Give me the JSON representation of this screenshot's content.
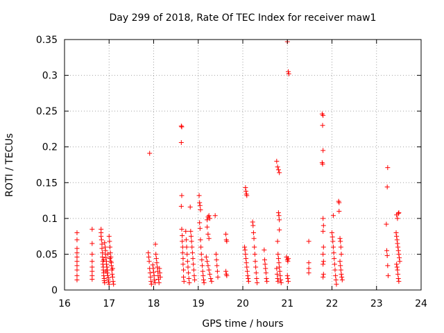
{
  "chart_data": {
    "type": "scatter",
    "title": "Day 299 of 2018, Rate Of TEC Index for receiver maw1",
    "xlabel": "GPS time / hours",
    "ylabel": "ROTI / TECUs",
    "xlim": [
      16,
      24
    ],
    "ylim": [
      0,
      0.35
    ],
    "grid": true,
    "marker": "plus",
    "color": "#ff0000",
    "x_ticks": [
      16,
      17,
      18,
      19,
      20,
      21,
      22,
      23,
      24
    ],
    "x_tick_labels": [
      "16",
      "17",
      "18",
      "19",
      "20",
      "21",
      "22",
      "23",
      "24"
    ],
    "y_ticks": [
      0,
      0.05,
      0.1,
      0.15,
      0.2,
      0.25,
      0.3,
      0.35
    ],
    "y_tick_labels": [
      "0",
      "0.05",
      "0.1",
      "0.15",
      "0.2",
      "0.25",
      "0.3",
      "0.35"
    ],
    "series": [
      {
        "name": "ROTI",
        "points": [
          [
            16.28,
            0.08
          ],
          [
            16.28,
            0.07
          ],
          [
            16.28,
            0.058
          ],
          [
            16.28,
            0.052
          ],
          [
            16.28,
            0.046
          ],
          [
            16.28,
            0.04
          ],
          [
            16.28,
            0.034
          ],
          [
            16.28,
            0.028
          ],
          [
            16.28,
            0.02
          ],
          [
            16.28,
            0.014
          ],
          [
            16.62,
            0.085
          ],
          [
            16.62,
            0.065
          ],
          [
            16.62,
            0.05
          ],
          [
            16.62,
            0.04
          ],
          [
            16.62,
            0.032
          ],
          [
            16.62,
            0.026
          ],
          [
            16.62,
            0.02
          ],
          [
            16.62,
            0.015
          ],
          [
            16.82,
            0.085
          ],
          [
            16.82,
            0.08
          ],
          [
            16.82,
            0.075
          ],
          [
            16.83,
            0.07
          ],
          [
            16.84,
            0.064
          ],
          [
            16.84,
            0.058
          ],
          [
            16.85,
            0.052
          ],
          [
            16.85,
            0.046
          ],
          [
            16.86,
            0.04
          ],
          [
            16.86,
            0.036
          ],
          [
            16.87,
            0.032
          ],
          [
            16.87,
            0.028
          ],
          [
            16.88,
            0.024
          ],
          [
            16.88,
            0.02
          ],
          [
            16.89,
            0.016
          ],
          [
            16.89,
            0.013
          ],
          [
            16.9,
            0.01
          ],
          [
            16.9,
            0.066
          ],
          [
            16.91,
            0.06
          ],
          [
            16.92,
            0.055
          ],
          [
            16.92,
            0.05
          ],
          [
            16.93,
            0.045
          ],
          [
            16.94,
            0.04
          ],
          [
            16.94,
            0.036
          ],
          [
            16.95,
            0.032
          ],
          [
            16.96,
            0.028
          ],
          [
            16.96,
            0.024
          ],
          [
            16.97,
            0.02
          ],
          [
            16.98,
            0.017
          ],
          [
            16.98,
            0.014
          ],
          [
            16.99,
            0.011
          ],
          [
            17.0,
            0.008
          ],
          [
            17.0,
            0.075
          ],
          [
            17.01,
            0.068
          ],
          [
            17.02,
            0.06
          ],
          [
            17.03,
            0.052
          ],
          [
            17.04,
            0.046
          ],
          [
            17.04,
            0.04
          ],
          [
            17.05,
            0.034
          ],
          [
            17.06,
            0.028
          ],
          [
            17.07,
            0.022
          ],
          [
            17.08,
            0.018
          ],
          [
            17.09,
            0.012
          ],
          [
            17.1,
            0.008
          ],
          [
            17.02,
            0.044
          ],
          [
            17.05,
            0.038
          ],
          [
            17.08,
            0.03
          ],
          [
            16.93,
            0.026
          ],
          [
            16.88,
            0.042
          ],
          [
            16.97,
            0.05
          ],
          [
            17.88,
            0.052
          ],
          [
            17.89,
            0.046
          ],
          [
            17.9,
            0.04
          ],
          [
            17.91,
            0.03
          ],
          [
            17.92,
            0.024
          ],
          [
            17.93,
            0.018
          ],
          [
            17.94,
            0.012
          ],
          [
            17.95,
            0.008
          ],
          [
            17.98,
            0.035
          ],
          [
            17.99,
            0.03
          ],
          [
            18.0,
            0.025
          ],
          [
            18.01,
            0.02
          ],
          [
            18.02,
            0.014
          ],
          [
            18.03,
            0.01
          ],
          [
            18.04,
            0.064
          ],
          [
            18.05,
            0.05
          ],
          [
            18.06,
            0.044
          ],
          [
            18.07,
            0.038
          ],
          [
            18.08,
            0.032
          ],
          [
            18.09,
            0.026
          ],
          [
            18.1,
            0.02
          ],
          [
            18.11,
            0.015
          ],
          [
            18.12,
            0.01
          ],
          [
            18.13,
            0.03
          ],
          [
            18.14,
            0.024
          ],
          [
            18.15,
            0.018
          ],
          [
            17.91,
            0.191
          ],
          [
            18.62,
            0.229
          ],
          [
            18.63,
            0.228
          ],
          [
            18.62,
            0.206
          ],
          [
            18.63,
            0.132
          ],
          [
            18.62,
            0.117
          ],
          [
            18.63,
            0.085
          ],
          [
            18.64,
            0.076
          ],
          [
            18.64,
            0.068
          ],
          [
            18.65,
            0.06
          ],
          [
            18.65,
            0.052
          ],
          [
            18.66,
            0.044
          ],
          [
            18.66,
            0.036
          ],
          [
            18.67,
            0.028
          ],
          [
            18.67,
            0.018
          ],
          [
            18.68,
            0.012
          ],
          [
            18.72,
            0.082
          ],
          [
            18.73,
            0.07
          ],
          [
            18.74,
            0.06
          ],
          [
            18.75,
            0.05
          ],
          [
            18.76,
            0.04
          ],
          [
            18.77,
            0.032
          ],
          [
            18.78,
            0.024
          ],
          [
            18.79,
            0.016
          ],
          [
            18.8,
            0.01
          ],
          [
            18.82,
            0.116
          ],
          [
            18.83,
            0.082
          ],
          [
            18.84,
            0.075
          ],
          [
            18.85,
            0.068
          ],
          [
            18.86,
            0.06
          ],
          [
            18.87,
            0.052
          ],
          [
            18.88,
            0.044
          ],
          [
            18.89,
            0.036
          ],
          [
            18.9,
            0.028
          ],
          [
            18.91,
            0.02
          ],
          [
            18.92,
            0.014
          ],
          [
            19.02,
            0.132
          ],
          [
            19.03,
            0.122
          ],
          [
            19.04,
            0.118
          ],
          [
            19.05,
            0.112
          ],
          [
            19.03,
            0.094
          ],
          [
            19.04,
            0.086
          ],
          [
            19.05,
            0.07
          ],
          [
            19.06,
            0.06
          ],
          [
            19.07,
            0.05
          ],
          [
            19.08,
            0.042
          ],
          [
            19.09,
            0.034
          ],
          [
            19.1,
            0.026
          ],
          [
            19.11,
            0.02
          ],
          [
            19.12,
            0.014
          ],
          [
            19.13,
            0.01
          ],
          [
            19.2,
            0.098
          ],
          [
            19.22,
            0.102
          ],
          [
            19.24,
            0.104
          ],
          [
            19.26,
            0.1
          ],
          [
            19.2,
            0.088
          ],
          [
            19.22,
            0.078
          ],
          [
            19.24,
            0.072
          ],
          [
            19.18,
            0.046
          ],
          [
            19.2,
            0.04
          ],
          [
            19.22,
            0.034
          ],
          [
            19.24,
            0.028
          ],
          [
            19.26,
            0.022
          ],
          [
            19.28,
            0.016
          ],
          [
            19.3,
            0.012
          ],
          [
            19.38,
            0.104
          ],
          [
            19.4,
            0.05
          ],
          [
            19.41,
            0.042
          ],
          [
            19.42,
            0.034
          ],
          [
            19.43,
            0.026
          ],
          [
            19.44,
            0.018
          ],
          [
            19.62,
            0.078
          ],
          [
            19.63,
            0.07
          ],
          [
            19.64,
            0.068
          ],
          [
            19.62,
            0.026
          ],
          [
            19.63,
            0.022
          ],
          [
            19.64,
            0.02
          ],
          [
            20.06,
            0.143
          ],
          [
            20.07,
            0.138
          ],
          [
            20.08,
            0.134
          ],
          [
            20.09,
            0.132
          ],
          [
            20.04,
            0.06
          ],
          [
            20.05,
            0.056
          ],
          [
            20.06,
            0.05
          ],
          [
            20.07,
            0.044
          ],
          [
            20.08,
            0.038
          ],
          [
            20.09,
            0.032
          ],
          [
            20.1,
            0.026
          ],
          [
            20.11,
            0.02
          ],
          [
            20.12,
            0.016
          ],
          [
            20.13,
            0.012
          ],
          [
            20.22,
            0.095
          ],
          [
            20.23,
            0.09
          ],
          [
            20.24,
            0.08
          ],
          [
            20.25,
            0.072
          ],
          [
            20.26,
            0.06
          ],
          [
            20.27,
            0.05
          ],
          [
            20.28,
            0.04
          ],
          [
            20.29,
            0.032
          ],
          [
            20.3,
            0.024
          ],
          [
            20.31,
            0.016
          ],
          [
            20.32,
            0.01
          ],
          [
            20.48,
            0.056
          ],
          [
            20.49,
            0.042
          ],
          [
            20.5,
            0.036
          ],
          [
            20.51,
            0.03
          ],
          [
            20.52,
            0.024
          ],
          [
            20.53,
            0.016
          ],
          [
            20.54,
            0.012
          ],
          [
            20.76,
            0.18
          ],
          [
            20.78,
            0.172
          ],
          [
            20.8,
            0.168
          ],
          [
            20.82,
            0.164
          ],
          [
            20.8,
            0.108
          ],
          [
            20.81,
            0.104
          ],
          [
            20.82,
            0.098
          ],
          [
            20.82,
            0.084
          ],
          [
            20.78,
            0.068
          ],
          [
            20.79,
            0.05
          ],
          [
            20.8,
            0.044
          ],
          [
            20.81,
            0.038
          ],
          [
            20.82,
            0.032
          ],
          [
            20.83,
            0.026
          ],
          [
            20.84,
            0.02
          ],
          [
            20.85,
            0.014
          ],
          [
            20.86,
            0.01
          ],
          [
            20.76,
            0.03
          ],
          [
            20.77,
            0.022
          ],
          [
            20.78,
            0.016
          ],
          [
            20.79,
            0.012
          ],
          [
            21.0,
            0.347
          ],
          [
            21.02,
            0.305
          ],
          [
            21.03,
            0.302
          ],
          [
            20.98,
            0.046
          ],
          [
            21.0,
            0.042
          ],
          [
            21.01,
            0.04
          ],
          [
            21.02,
            0.044
          ],
          [
            21.0,
            0.02
          ],
          [
            21.01,
            0.016
          ],
          [
            21.02,
            0.012
          ],
          [
            21.48,
            0.068
          ],
          [
            21.48,
            0.038
          ],
          [
            21.48,
            0.03
          ],
          [
            21.48,
            0.024
          ],
          [
            21.78,
            0.246
          ],
          [
            21.8,
            0.244
          ],
          [
            21.79,
            0.23
          ],
          [
            21.8,
            0.195
          ],
          [
            21.78,
            0.178
          ],
          [
            21.79,
            0.176
          ],
          [
            21.8,
            0.1
          ],
          [
            21.81,
            0.09
          ],
          [
            21.8,
            0.082
          ],
          [
            21.81,
            0.06
          ],
          [
            21.8,
            0.05
          ],
          [
            21.81,
            0.04
          ],
          [
            21.8,
            0.036
          ],
          [
            21.81,
            0.022
          ],
          [
            21.8,
            0.018
          ],
          [
            22.0,
            0.08
          ],
          [
            22.01,
            0.074
          ],
          [
            22.02,
            0.068
          ],
          [
            22.03,
            0.06
          ],
          [
            22.04,
            0.052
          ],
          [
            22.05,
            0.044
          ],
          [
            22.06,
            0.036
          ],
          [
            22.07,
            0.028
          ],
          [
            22.08,
            0.02
          ],
          [
            22.09,
            0.014
          ],
          [
            22.1,
            0.008
          ],
          [
            22.03,
            0.104
          ],
          [
            22.15,
            0.124
          ],
          [
            22.16,
            0.122
          ],
          [
            22.16,
            0.11
          ],
          [
            22.18,
            0.072
          ],
          [
            22.19,
            0.068
          ],
          [
            22.2,
            0.06
          ],
          [
            22.21,
            0.05
          ],
          [
            22.18,
            0.04
          ],
          [
            22.19,
            0.034
          ],
          [
            22.2,
            0.028
          ],
          [
            22.21,
            0.022
          ],
          [
            22.22,
            0.018
          ],
          [
            22.23,
            0.014
          ],
          [
            23.25,
            0.171
          ],
          [
            23.24,
            0.144
          ],
          [
            23.22,
            0.092
          ],
          [
            23.23,
            0.055
          ],
          [
            23.24,
            0.048
          ],
          [
            23.25,
            0.034
          ],
          [
            23.26,
            0.02
          ],
          [
            23.45,
            0.105
          ],
          [
            23.47,
            0.1
          ],
          [
            23.49,
            0.107
          ],
          [
            23.5,
            0.108
          ],
          [
            23.44,
            0.08
          ],
          [
            23.45,
            0.075
          ],
          [
            23.46,
            0.07
          ],
          [
            23.47,
            0.065
          ],
          [
            23.48,
            0.06
          ],
          [
            23.49,
            0.055
          ],
          [
            23.5,
            0.05
          ],
          [
            23.51,
            0.045
          ],
          [
            23.52,
            0.04
          ],
          [
            23.45,
            0.036
          ],
          [
            23.46,
            0.032
          ],
          [
            23.47,
            0.028
          ],
          [
            23.48,
            0.022
          ],
          [
            23.49,
            0.016
          ],
          [
            23.5,
            0.012
          ]
        ]
      }
    ]
  }
}
